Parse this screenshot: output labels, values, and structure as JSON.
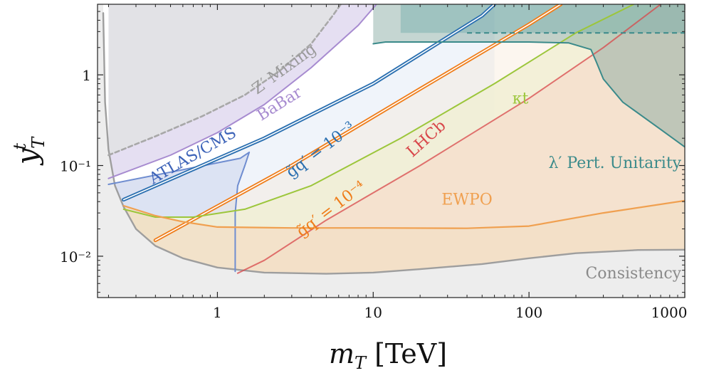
{
  "chart_data": {
    "type": "area",
    "title": "",
    "xlabel": "m_T [TeV]",
    "ylabel": "y_T^t",
    "x_scale": "log",
    "y_scale": "log",
    "xlim": [
      0.17,
      1000
    ],
    "ylim": [
      0.0035,
      6
    ],
    "grid": false,
    "x_ticks": [
      {
        "value": 1,
        "label": "1"
      },
      {
        "value": 10,
        "label": "10"
      },
      {
        "value": 100,
        "label": "100"
      },
      {
        "value": 1000,
        "label": "1000"
      }
    ],
    "y_ticks": [
      {
        "value": 0.01,
        "label": "10⁻²"
      },
      {
        "value": 0.1,
        "label": "10⁻¹"
      },
      {
        "value": 1,
        "label": "1"
      }
    ],
    "colors": {
      "consistency": "#9e9e9e",
      "zprime": "#9a9a9a",
      "babar": "#a78bd0",
      "atlas": "#4a72c4",
      "blue": "#2a6fb0",
      "orange": "#ef7d1a",
      "kappa": "#9cc63b",
      "lhcb": "#d8474a",
      "ewpo": "#f0a050",
      "unitarity": "#3a8a8a"
    },
    "series": [
      {
        "name": "Consistency",
        "label_text": "Consistency",
        "style": "boundary",
        "points": [
          [
            0.185,
            4.8
          ],
          [
            0.19,
            0.5
          ],
          [
            0.2,
            0.15
          ],
          [
            0.22,
            0.06
          ],
          [
            0.25,
            0.035
          ],
          [
            0.3,
            0.02
          ],
          [
            0.4,
            0.013
          ],
          [
            0.6,
            0.0095
          ],
          [
            1,
            0.0075
          ],
          [
            2,
            0.0066
          ],
          [
            5,
            0.0064
          ],
          [
            10,
            0.0066
          ],
          [
            20,
            0.0072
          ],
          [
            50,
            0.0082
          ],
          [
            100,
            0.0095
          ],
          [
            200,
            0.0108
          ],
          [
            500,
            0.0117
          ],
          [
            1000,
            0.0118
          ]
        ]
      },
      {
        "name": "Z' Mixing",
        "label_text": "Z′ Mixing",
        "style": "dashed",
        "points": [
          [
            0.2,
            0.13
          ],
          [
            0.4,
            0.21
          ],
          [
            0.8,
            0.35
          ],
          [
            1.5,
            0.6
          ],
          [
            2.5,
            1.1
          ],
          [
            4,
            2.2
          ],
          [
            5.5,
            4.5
          ],
          [
            6.2,
            6
          ]
        ]
      },
      {
        "name": "BaBar",
        "label_text": "BaBar",
        "style": "line",
        "points": [
          [
            0.2,
            0.072
          ],
          [
            0.5,
            0.13
          ],
          [
            1,
            0.23
          ],
          [
            2,
            0.47
          ],
          [
            4,
            1.2
          ],
          [
            8,
            3.5
          ],
          [
            10.5,
            6
          ]
        ]
      },
      {
        "name": "ATLAS/CMS",
        "label_text": "ATLAS/CMS",
        "style": "line",
        "points": [
          [
            0.2,
            0.062
          ],
          [
            0.6,
            0.09
          ],
          [
            1.4,
            0.12
          ],
          [
            1.6,
            0.14
          ],
          [
            1.5,
            0.1
          ],
          [
            1.35,
            0.06
          ],
          [
            1.3,
            0.03
          ],
          [
            1.3,
            0.0068
          ]
        ]
      },
      {
        "name": "g̃q′ = 10⁻³",
        "label_text": "g̃q′ = 10⁻³",
        "style": "double",
        "points": [
          [
            0.25,
            0.042
          ],
          [
            2,
            0.2
          ],
          [
            10,
            0.8
          ],
          [
            50,
            4.5
          ],
          [
            60,
            6
          ]
        ]
      },
      {
        "name": "g̃q′ = 10⁻⁴",
        "label_text": "g̃q′ = 10⁻⁴",
        "style": "double",
        "points": [
          [
            0.4,
            0.015
          ],
          [
            3,
            0.1
          ],
          [
            20,
            0.7
          ],
          [
            100,
            3.6
          ],
          [
            160,
            6
          ]
        ]
      },
      {
        "name": "κt",
        "label_text": "κt",
        "style": "line",
        "points": [
          [
            0.25,
            0.033
          ],
          [
            0.4,
            0.027
          ],
          [
            0.7,
            0.027
          ],
          [
            1.5,
            0.033
          ],
          [
            4,
            0.06
          ],
          [
            15,
            0.2
          ],
          [
            60,
            0.8
          ],
          [
            200,
            2.9
          ],
          [
            470,
            6
          ]
        ]
      },
      {
        "name": "LHCb",
        "label_text": "LHCb",
        "style": "line",
        "points": [
          [
            1.35,
            0.0065
          ],
          [
            2,
            0.009
          ],
          [
            5,
            0.025
          ],
          [
            20,
            0.1
          ],
          [
            100,
            0.55
          ],
          [
            300,
            2
          ],
          [
            700,
            6
          ]
        ]
      },
      {
        "name": "EWPO",
        "label_text": "EWPO",
        "style": "line",
        "points": [
          [
            0.25,
            0.036
          ],
          [
            0.4,
            0.028
          ],
          [
            0.6,
            0.024
          ],
          [
            1,
            0.021
          ],
          [
            3,
            0.0205
          ],
          [
            10,
            0.0205
          ],
          [
            40,
            0.0203
          ],
          [
            100,
            0.0215
          ],
          [
            300,
            0.03
          ],
          [
            1000,
            0.041
          ]
        ]
      },
      {
        "name": "λ′ Pert. Unitarity",
        "label_text": "λ′ Pert. Unitarity",
        "style": "line",
        "points": [
          [
            10,
            2.2
          ],
          [
            12,
            2.3
          ],
          [
            20,
            2.3
          ],
          [
            100,
            2.3
          ],
          [
            180,
            2.25
          ],
          [
            250,
            1.9
          ],
          [
            270,
            1.4
          ],
          [
            300,
            0.9
          ],
          [
            400,
            0.5
          ],
          [
            700,
            0.25
          ],
          [
            1000,
            0.16
          ]
        ]
      }
    ],
    "bands": {
      "consistency_region": "outside curve",
      "top_cut_y": 2.9
    }
  }
}
